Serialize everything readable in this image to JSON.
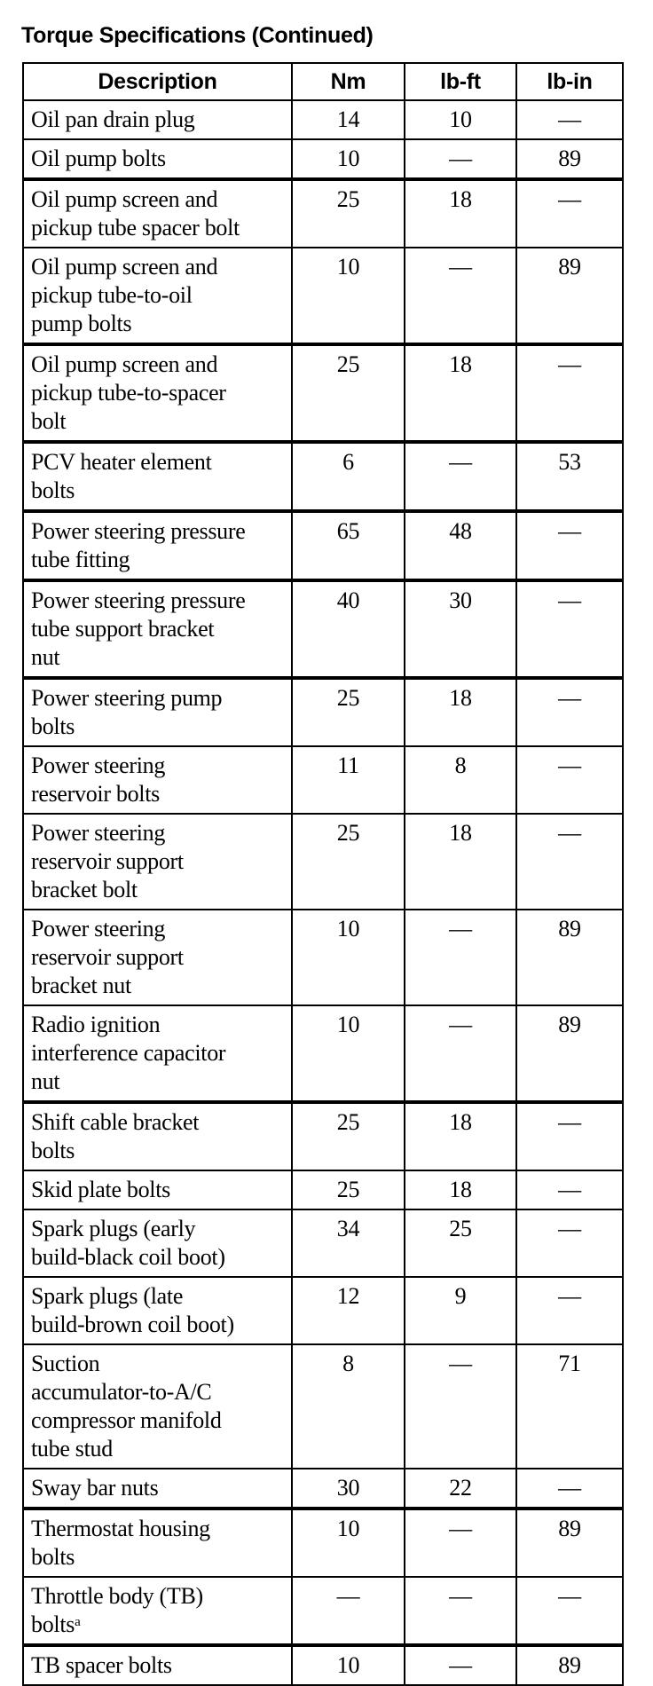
{
  "title": "Torque Specifications (Continued)",
  "columns": [
    "Description",
    "Nm",
    "lb-ft",
    "lb-in"
  ],
  "rows": [
    {
      "description": "Oil pan drain plug",
      "nm": "14",
      "lbft": "10",
      "lbin": "—"
    },
    {
      "description": "Oil pump bolts",
      "nm": "10",
      "lbft": "—",
      "lbin": "89"
    },
    {
      "description": "Oil pump screen and\npickup tube spacer bolt",
      "nm": "25",
      "lbft": "18",
      "lbin": "—"
    },
    {
      "description": "Oil pump screen and\npickup tube-to-oil\npump bolts",
      "nm": "10",
      "lbft": "—",
      "lbin": "89"
    },
    {
      "description": "Oil pump screen and\npickup tube-to-spacer\nbolt",
      "nm": "25",
      "lbft": "18",
      "lbin": "—"
    },
    {
      "description": "PCV heater element\nbolts",
      "nm": "6",
      "lbft": "—",
      "lbin": "53"
    },
    {
      "description": "Power steering pressure\ntube fitting",
      "nm": "65",
      "lbft": "48",
      "lbin": "—"
    },
    {
      "description": "Power steering pressure\ntube support bracket\nnut",
      "nm": "40",
      "lbft": "30",
      "lbin": "—"
    },
    {
      "description": "Power steering pump\nbolts",
      "nm": "25",
      "lbft": "18",
      "lbin": "—"
    },
    {
      "description": "Power steering\nreservoir bolts",
      "nm": "11",
      "lbft": "8",
      "lbin": "—"
    },
    {
      "description": "Power steering\nreservoir support\nbracket bolt",
      "nm": "25",
      "lbft": "18",
      "lbin": "—"
    },
    {
      "description": "Power steering\nreservoir support\nbracket nut",
      "nm": "10",
      "lbft": "—",
      "lbin": "89"
    },
    {
      "description": "Radio ignition\ninterference capacitor\nnut",
      "nm": "10",
      "lbft": "—",
      "lbin": "89"
    },
    {
      "description": "Shift cable bracket\nbolts",
      "nm": "25",
      "lbft": "18",
      "lbin": "—"
    },
    {
      "description": "Skid plate bolts",
      "nm": "25",
      "lbft": "18",
      "lbin": "—"
    },
    {
      "description": "Spark plugs (early\nbuild-black coil boot)",
      "nm": "34",
      "lbft": "25",
      "lbin": "—"
    },
    {
      "description": "Spark plugs (late\nbuild-brown coil boot)",
      "nm": "12",
      "lbft": "9",
      "lbin": "—"
    },
    {
      "description": "Suction\naccumulator-to-A/C\ncompressor manifold\ntube stud",
      "nm": "8",
      "lbft": "—",
      "lbin": "71"
    },
    {
      "description": "Sway bar nuts",
      "nm": "30",
      "lbft": "22",
      "lbin": "—"
    },
    {
      "description": "Thermostat housing\nbolts",
      "nm": "10",
      "lbft": "—",
      "lbin": "89"
    },
    {
      "description": "Throttle body (TB)\nbolts",
      "footnote": "a",
      "nm": "—",
      "lbft": "—",
      "lbin": "—"
    },
    {
      "description": "TB spacer bolts",
      "nm": "10",
      "lbft": "—",
      "lbin": "89"
    }
  ]
}
